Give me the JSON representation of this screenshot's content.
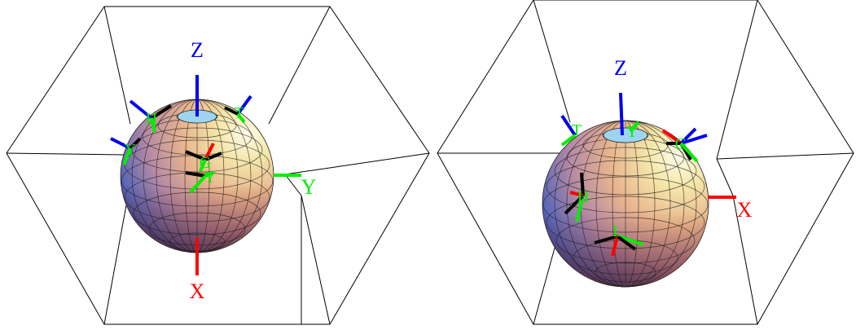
{
  "colors": {
    "x_axis": "#ff0000",
    "y_axis": "#00ee00",
    "z_axis": "#0000ee",
    "frame_arm": "#000000",
    "frame_label": "#00ee00",
    "box": "#000000"
  },
  "panels": [
    {
      "axis_labels": {
        "z": "Z",
        "y": "Y",
        "x": "X"
      },
      "frame_labels": [
        "H",
        "T",
        "Y",
        "G",
        "Y"
      ]
    },
    {
      "axis_labels": {
        "z": "Z",
        "x": "X"
      },
      "frame_labels": [
        "T",
        "Y",
        "G",
        "H",
        "L"
      ]
    }
  ]
}
